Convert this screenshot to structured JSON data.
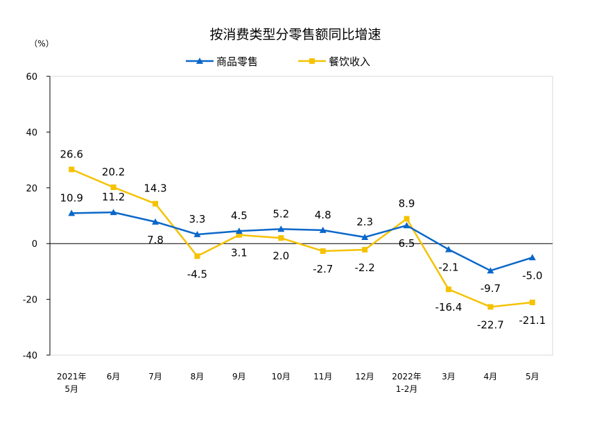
{
  "chart_data": {
    "type": "line",
    "title": "按消费类型分零售额同比增速",
    "ylabel": "（%）",
    "xlabel": "",
    "categories": [
      "2021年\n5月",
      "6月",
      "7月",
      "8月",
      "9月",
      "10月",
      "11月",
      "12月",
      "2022年\n1-2月",
      "3月",
      "4月",
      "5月"
    ],
    "ylim": [
      -40,
      60
    ],
    "yticks": [
      -40,
      -20,
      0,
      20,
      40,
      60
    ],
    "grid": false,
    "legend": "top",
    "series": [
      {
        "name": "商品零售",
        "color": "#0a67c9",
        "marker": "triangle",
        "values": [
          10.9,
          11.2,
          7.8,
          3.3,
          4.5,
          5.2,
          4.8,
          2.3,
          6.5,
          -2.1,
          -9.7,
          -5.0
        ]
      },
      {
        "name": "餐饮收入",
        "color": "#f5c200",
        "marker": "square",
        "values": [
          26.6,
          20.2,
          14.3,
          -4.5,
          3.1,
          2.0,
          -2.7,
          -2.2,
          8.9,
          -16.4,
          -22.7,
          -21.1
        ]
      }
    ]
  }
}
